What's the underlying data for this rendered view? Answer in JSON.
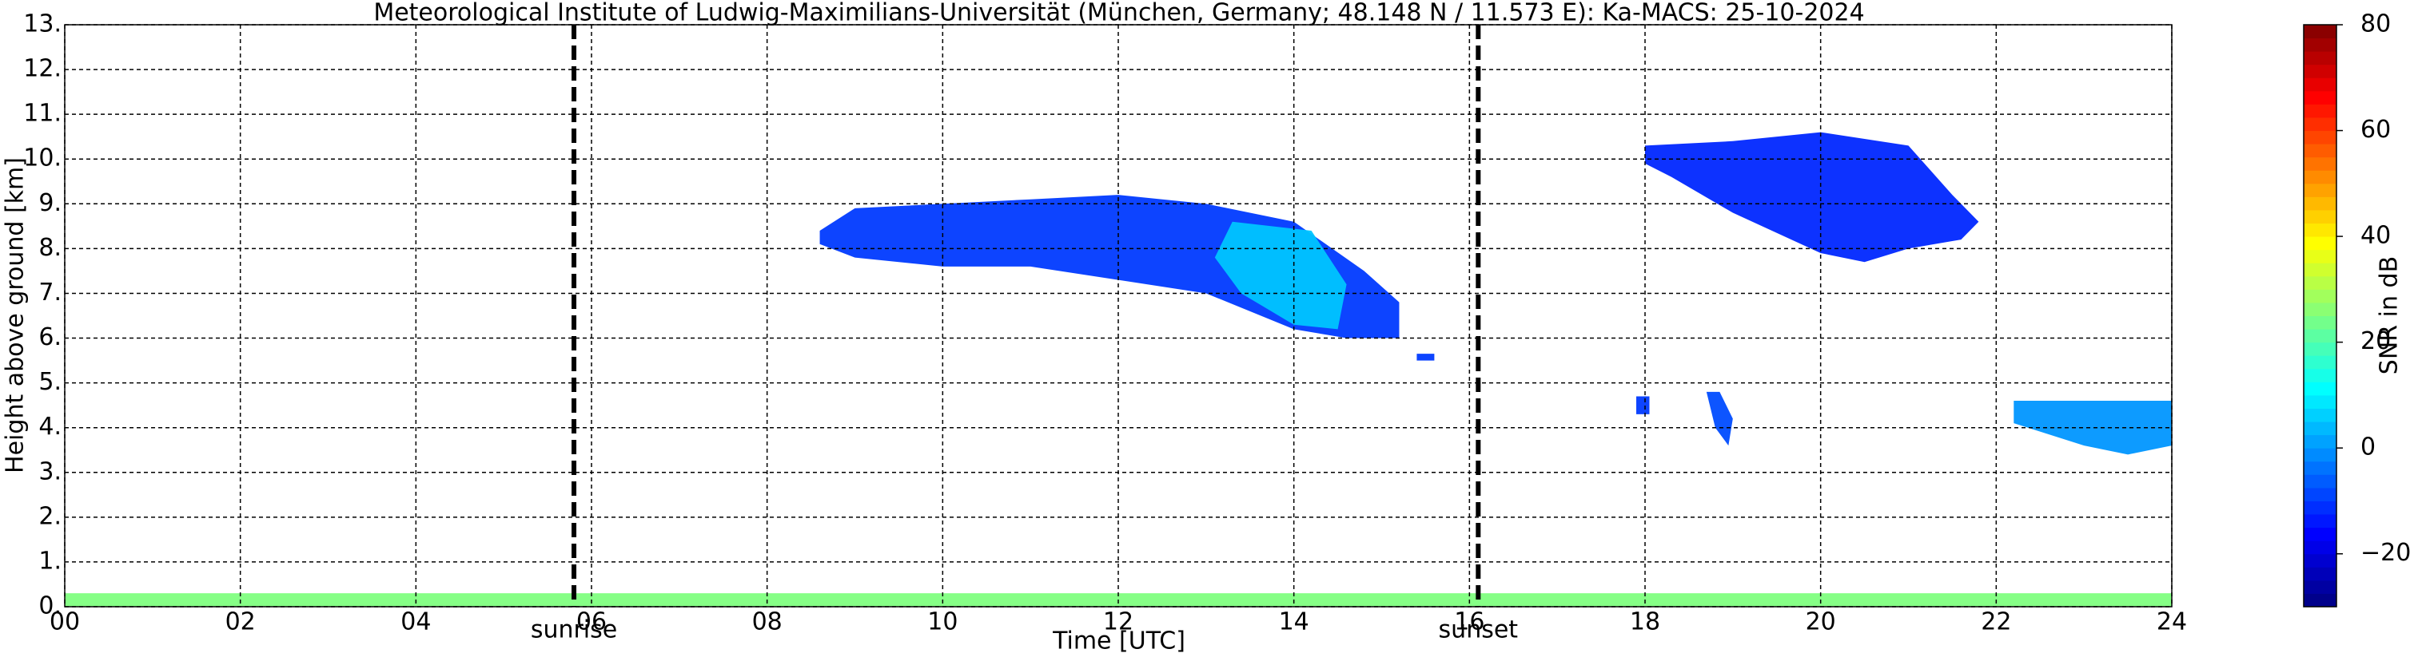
{
  "chart_data": {
    "type": "time-height",
    "title": "Meteorological Institute of Ludwig-Maximilians-Universität (München, Germany; 48.148 N / 11.573 E):    Ka-MACS: 25-10-2024",
    "x_label": "Time [UTC]",
    "y_label": "Height above ground [km]",
    "xlim": [
      0,
      24
    ],
    "xticks": [
      {
        "value": 0,
        "label": "00"
      },
      {
        "value": 2,
        "label": "02"
      },
      {
        "value": 4,
        "label": "04"
      },
      {
        "value": 6,
        "label": "06"
      },
      {
        "value": 8,
        "label": "08"
      },
      {
        "value": 10,
        "label": "10"
      },
      {
        "value": 12,
        "label": "12"
      },
      {
        "value": 14,
        "label": "14"
      },
      {
        "value": 16,
        "label": "16"
      },
      {
        "value": 18,
        "label": "18"
      },
      {
        "value": 20,
        "label": "20"
      },
      {
        "value": 22,
        "label": "22"
      },
      {
        "value": 24,
        "label": "24"
      }
    ],
    "ylim": [
      0,
      13
    ],
    "yticks": [
      {
        "value": 0,
        "label": "0."
      },
      {
        "value": 1,
        "label": "1."
      },
      {
        "value": 2,
        "label": "2."
      },
      {
        "value": 3,
        "label": "3."
      },
      {
        "value": 4,
        "label": "4."
      },
      {
        "value": 5,
        "label": "5."
      },
      {
        "value": 6,
        "label": "6."
      },
      {
        "value": 7,
        "label": "7."
      },
      {
        "value": 8,
        "label": "8."
      },
      {
        "value": 9,
        "label": "9."
      },
      {
        "value": 10,
        "label": "10."
      },
      {
        "value": 11,
        "label": "11."
      },
      {
        "value": 12,
        "label": "12."
      },
      {
        "value": 13,
        "label": "13."
      }
    ],
    "grid": true,
    "colorbar": {
      "label": "SNR in dB",
      "lim": [
        -30,
        80
      ],
      "ticks": [
        {
          "value": -20,
          "label": "−20"
        },
        0,
        20,
        40,
        60,
        80
      ],
      "colormap": [
        "#00007f",
        "#0000ff",
        "#007fff",
        "#00ffff",
        "#7fff7f",
        "#ffff00",
        "#ff7f00",
        "#ff0000",
        "#7f0000"
      ]
    },
    "annotations": [
      {
        "x": 5.8,
        "label": "sunrise"
      },
      {
        "x": 16.1,
        "label": "sunset"
      }
    ],
    "echoes": [
      {
        "snr": 25,
        "points": [
          [
            0,
            0
          ],
          [
            24,
            0
          ],
          [
            24,
            0.3
          ],
          [
            0,
            0.3
          ]
        ]
      },
      {
        "snr": -10,
        "points": [
          [
            8.6,
            8.4
          ],
          [
            9,
            8.9
          ],
          [
            10,
            9.0
          ],
          [
            11,
            9.1
          ],
          [
            12,
            9.2
          ],
          [
            13,
            9.0
          ],
          [
            14,
            8.6
          ],
          [
            14.8,
            7.5
          ],
          [
            15.2,
            6.8
          ],
          [
            15.2,
            6.0
          ],
          [
            14.6,
            6.0
          ],
          [
            14,
            6.2
          ],
          [
            13,
            7.0
          ],
          [
            12,
            7.3
          ],
          [
            11,
            7.6
          ],
          [
            10,
            7.6
          ],
          [
            9,
            7.8
          ],
          [
            8.6,
            8.1
          ]
        ]
      },
      {
        "snr": 5,
        "points": [
          [
            13.3,
            8.6
          ],
          [
            14.2,
            8.4
          ],
          [
            14.6,
            7.2
          ],
          [
            14.5,
            6.2
          ],
          [
            14,
            6.3
          ],
          [
            13.4,
            7.0
          ],
          [
            13.1,
            7.8
          ]
        ]
      },
      {
        "snr": -10,
        "points": [
          [
            15.4,
            5.5
          ],
          [
            15.6,
            5.5
          ],
          [
            15.6,
            5.65
          ],
          [
            15.4,
            5.65
          ]
        ]
      },
      {
        "snr": -12,
        "points": [
          [
            18,
            10.3
          ],
          [
            19,
            10.4
          ],
          [
            20,
            10.6
          ],
          [
            21,
            10.3
          ],
          [
            21.5,
            9.2
          ],
          [
            21.8,
            8.6
          ],
          [
            21.6,
            8.2
          ],
          [
            21,
            8.0
          ],
          [
            20.5,
            7.7
          ],
          [
            20,
            7.9
          ],
          [
            19,
            8.8
          ],
          [
            18.3,
            9.6
          ],
          [
            18,
            9.9
          ]
        ]
      },
      {
        "snr": -10,
        "points": [
          [
            17.9,
            4.7
          ],
          [
            18.05,
            4.7
          ],
          [
            18.05,
            4.3
          ],
          [
            17.9,
            4.3
          ]
        ]
      },
      {
        "snr": -8,
        "points": [
          [
            18.7,
            4.8
          ],
          [
            18.85,
            4.8
          ],
          [
            19,
            4.2
          ],
          [
            18.95,
            3.6
          ],
          [
            18.8,
            4.0
          ]
        ]
      },
      {
        "snr": 0,
        "points": [
          [
            22.2,
            4.6
          ],
          [
            24,
            4.6
          ],
          [
            24,
            3.6
          ],
          [
            23.5,
            3.4
          ],
          [
            23,
            3.6
          ],
          [
            22.2,
            4.1
          ]
        ]
      }
    ]
  }
}
